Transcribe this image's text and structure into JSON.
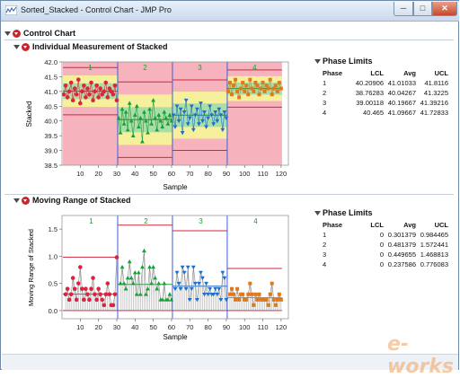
{
  "window": {
    "title": "Sorted_Stacked - Control Chart - JMP Pro"
  },
  "report": {
    "title": "Control Chart"
  },
  "chart1": {
    "title": "Individual Measurement of Stacked",
    "ylabel": "Stacked",
    "xlabel": "Sample",
    "y_ticks": [
      "42.0",
      "41.5",
      "41.0",
      "40.5",
      "40.0",
      "39.5",
      "39.0",
      "38.5"
    ],
    "x_ticks": [
      "10",
      "20",
      "30",
      "40",
      "50",
      "60",
      "70",
      "80",
      "90",
      "100",
      "110",
      "120"
    ],
    "phase_labels": [
      "1",
      "2",
      "3",
      "4"
    ]
  },
  "chart2": {
    "title": "Moving Range of Stacked",
    "ylabel": "Moving Range of Stacked",
    "xlabel": "Sample",
    "y_ticks": [
      "1.5",
      "1.0",
      "0.5",
      "0.0"
    ],
    "x_ticks": [
      "10",
      "20",
      "30",
      "40",
      "50",
      "60",
      "70",
      "80",
      "90",
      "100",
      "110",
      "120"
    ],
    "phase_labels": [
      "1",
      "2",
      "3",
      "4"
    ]
  },
  "limits1": {
    "title": "Phase Limits",
    "headers": [
      "Phase",
      "LCL",
      "Avg",
      "UCL"
    ],
    "rows": [
      [
        "1",
        "40.20906",
        "41.01033",
        "41.8116"
      ],
      [
        "2",
        "38.76283",
        "40.04267",
        "41.3225"
      ],
      [
        "3",
        "39.00118",
        "40.19667",
        "41.39216"
      ],
      [
        "4",
        "40.465",
        "41.09667",
        "41.72833"
      ]
    ]
  },
  "limits2": {
    "title": "Phase Limits",
    "headers": [
      "Phase",
      "LCL",
      "Avg",
      "UCL"
    ],
    "rows": [
      [
        "1",
        "0",
        "0.301379",
        "0.984465"
      ],
      [
        "2",
        "0",
        "0.481379",
        "1.572441"
      ],
      [
        "3",
        "0",
        "0.449655",
        "1.468813"
      ],
      [
        "4",
        "0",
        "0.237586",
        "0.776083"
      ]
    ]
  },
  "watermark": "e-works",
  "colors": {
    "phase1": "#d9253f",
    "phase2": "#1a9e3a",
    "phase3": "#1f6fc9",
    "phase4": "#e27817",
    "zone_red": "#f7b3bd",
    "zone_yellow": "#f6ef9c",
    "zone_green": "#a9dfa6",
    "limit_line": "#d3263c",
    "phase_divider": "#3a5fd8"
  },
  "chart_data": [
    {
      "type": "scatter",
      "title": "Individual Measurement of Stacked",
      "xlabel": "Sample",
      "ylabel": "Stacked",
      "xlim": [
        0,
        124
      ],
      "ylim": [
        38.5,
        42.0
      ],
      "phases": [
        {
          "name": "1",
          "x_start": 1,
          "x_end": 30,
          "lcl": 40.20906,
          "avg": 41.01033,
          "ucl": 41.8116,
          "values": [
            40.9,
            41.2,
            40.8,
            41.0,
            41.3,
            40.7,
            41.1,
            40.9,
            41.4,
            40.6,
            41.0,
            41.2,
            40.8,
            41.1,
            40.9,
            41.3,
            40.7,
            41.0,
            41.2,
            40.8,
            41.1,
            40.9,
            41.0,
            41.3,
            40.8,
            41.1,
            41.0,
            40.9,
            41.2,
            40.7
          ]
        },
        {
          "name": "2",
          "x_start": 31,
          "x_end": 60,
          "lcl": 38.76283,
          "avg": 40.04267,
          "ucl": 41.3225,
          "values": [
            40.1,
            39.6,
            40.4,
            39.9,
            40.3,
            39.7,
            40.6,
            40.0,
            39.5,
            40.2,
            40.5,
            39.8,
            40.1,
            39.3,
            40.3,
            40.0,
            39.6,
            40.4,
            39.9,
            40.7,
            40.1,
            39.7,
            40.2,
            40.0,
            39.8,
            40.3,
            40.1,
            39.9,
            40.2,
            40.0
          ]
        },
        {
          "name": "3",
          "x_start": 61,
          "x_end": 90,
          "lcl": 39.00118,
          "avg": 40.19667,
          "ucl": 41.39216,
          "values": [
            40.2,
            39.8,
            40.5,
            40.0,
            40.4,
            39.6,
            40.3,
            40.7,
            39.9,
            40.1,
            40.5,
            39.7,
            40.2,
            40.4,
            39.9,
            40.6,
            40.0,
            40.3,
            39.8,
            40.1,
            40.5,
            40.2,
            39.9,
            40.3,
            40.0,
            40.4,
            40.2,
            39.7,
            40.3,
            40.1
          ]
        },
        {
          "name": "4",
          "x_start": 91,
          "x_end": 120,
          "lcl": 40.465,
          "avg": 41.09667,
          "ucl": 41.72833,
          "values": [
            41.0,
            41.3,
            40.9,
            41.2,
            41.4,
            41.0,
            40.8,
            41.1,
            41.3,
            41.0,
            41.2,
            40.9,
            41.4,
            41.1,
            41.0,
            41.3,
            41.2,
            40.9,
            41.1,
            41.3,
            41.0,
            41.2,
            41.1,
            41.4,
            40.9,
            41.1,
            41.2,
            41.0,
            41.3,
            41.1
          ]
        }
      ]
    },
    {
      "type": "line",
      "title": "Moving Range of Stacked",
      "xlabel": "Sample",
      "ylabel": "Moving Range of Stacked",
      "xlim": [
        0,
        124
      ],
      "ylim": [
        -0.15,
        1.75
      ],
      "phases": [
        {
          "name": "1",
          "x_start": 2,
          "x_end": 30,
          "lcl": 0,
          "avg": 0.301379,
          "ucl": 0.984465,
          "values": [
            0.3,
            0.4,
            0.2,
            0.3,
            0.6,
            0.4,
            0.2,
            0.5,
            0.8,
            0.4,
            0.2,
            0.4,
            0.3,
            0.2,
            0.4,
            0.6,
            0.3,
            0.2,
            0.4,
            0.3,
            0.2,
            0.1,
            0.3,
            0.5,
            0.3,
            0.1,
            0.1,
            0.3,
            0.98
          ]
        },
        {
          "name": "2",
          "x_start": 32,
          "x_end": 60,
          "lcl": 0,
          "avg": 0.481379,
          "ucl": 1.572441,
          "values": [
            0.5,
            0.8,
            0.5,
            0.4,
            0.6,
            0.9,
            0.6,
            0.5,
            0.7,
            0.3,
            0.7,
            0.3,
            0.8,
            1.1,
            0.3,
            0.4,
            0.8,
            0.5,
            0.8,
            0.6,
            0.4,
            0.5,
            0.2,
            0.2,
            0.5,
            0.2,
            0.2,
            0.3,
            0.2
          ]
        },
        {
          "name": "3",
          "x_start": 62,
          "x_end": 90,
          "lcl": 0,
          "avg": 0.449655,
          "ucl": 1.468813,
          "values": [
            0.4,
            0.7,
            0.5,
            0.4,
            0.8,
            0.7,
            0.4,
            0.8,
            0.2,
            0.4,
            0.8,
            0.5,
            0.2,
            0.5,
            0.7,
            0.6,
            0.3,
            0.5,
            0.3,
            0.4,
            0.3,
            0.3,
            0.4,
            0.3,
            0.4,
            0.2,
            0.7,
            0.6,
            0.2
          ]
        },
        {
          "name": "4",
          "x_start": 92,
          "x_end": 120,
          "lcl": 0,
          "avg": 0.237586,
          "ucl": 0.776083,
          "values": [
            0.3,
            0.4,
            0.3,
            0.2,
            0.4,
            0.2,
            0.3,
            0.3,
            0.2,
            0.2,
            0.3,
            0.5,
            0.3,
            0.1,
            0.3,
            0.2,
            0.3,
            0.2,
            0.2,
            0.2,
            0.2,
            0.1,
            0.3,
            0.5,
            0.2,
            0.1,
            0.2,
            0.3,
            0.2
          ]
        }
      ]
    }
  ]
}
